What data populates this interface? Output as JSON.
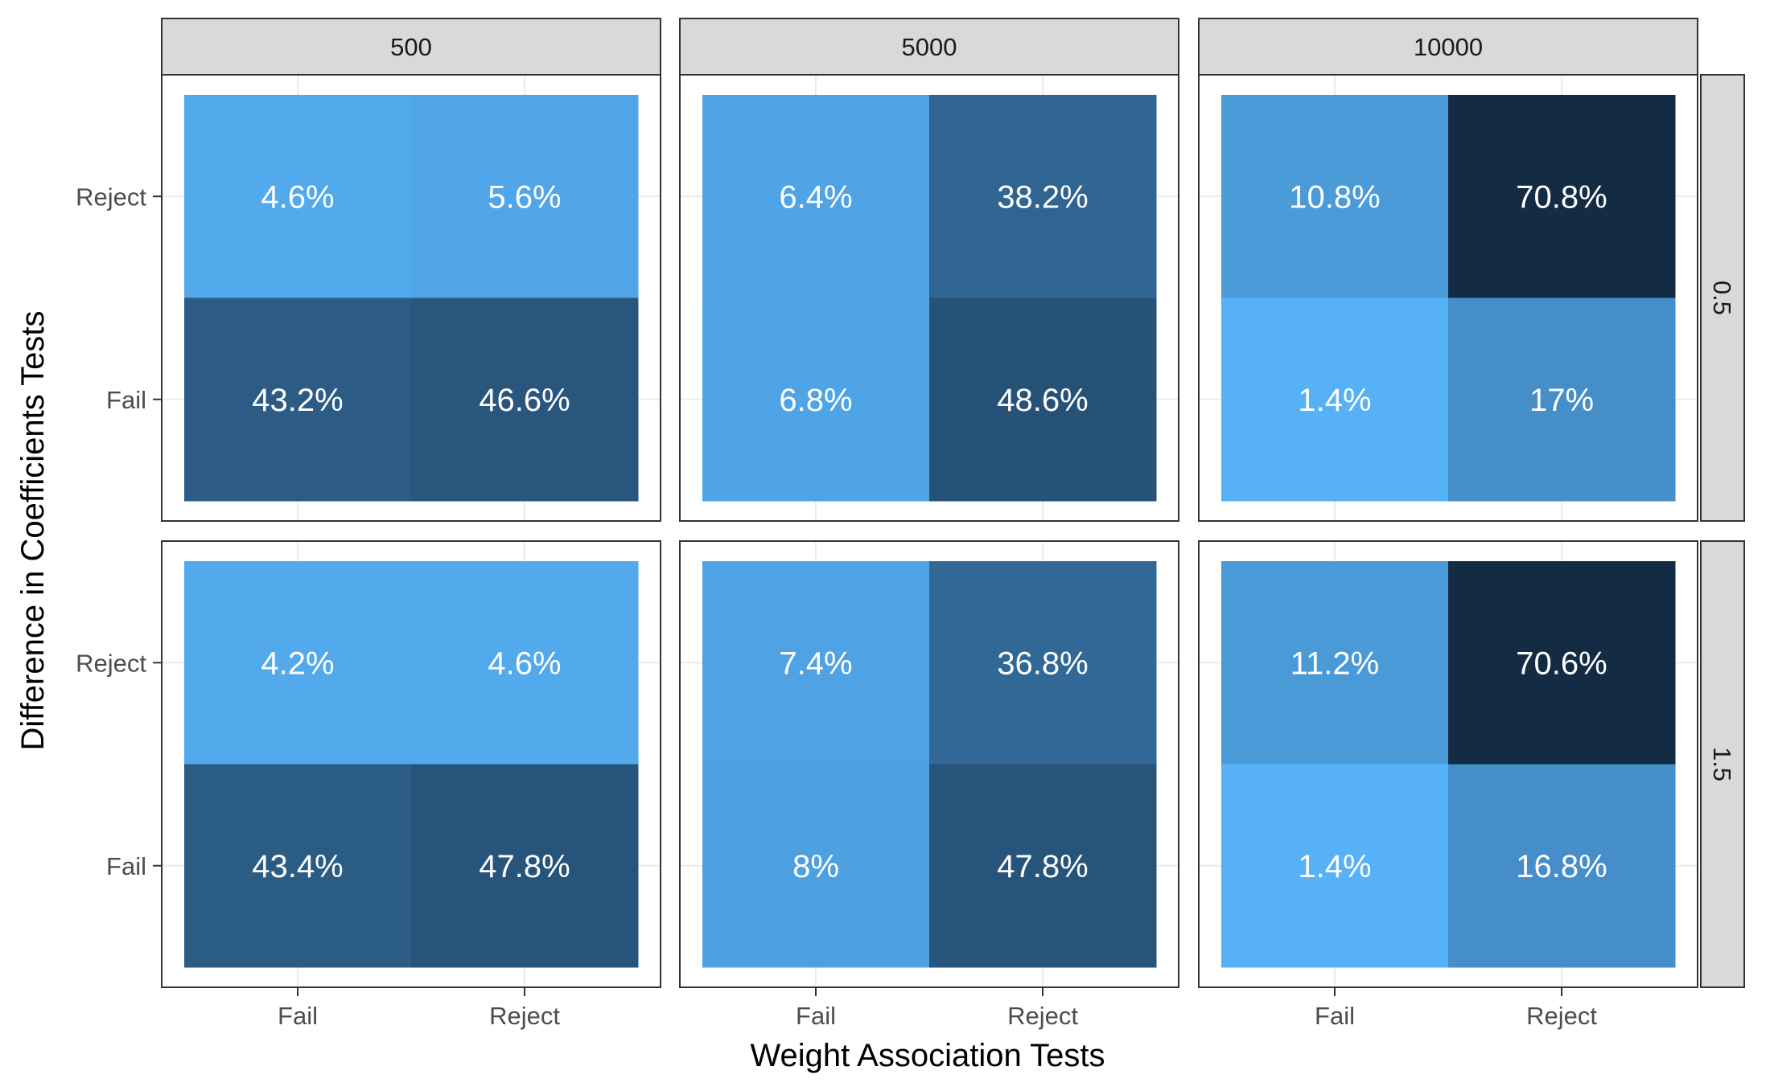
{
  "chart_data": {
    "type": "heatmap",
    "xlabel": "Weight Association Tests",
    "ylabel": "Difference in Coefficients Tests",
    "x_categories": [
      "Fail",
      "Reject"
    ],
    "y_categories": [
      "Fail",
      "Reject"
    ],
    "facet_columns": [
      "500",
      "5000",
      "10000"
    ],
    "facet_rows": [
      "0.5",
      "1.5"
    ],
    "value_unit": "%",
    "color_scale": {
      "low": "#56b1f7",
      "high": "#132b43"
    },
    "panels": [
      {
        "col": "500",
        "row": "0.5",
        "cells": [
          {
            "x": "Fail",
            "y": "Reject",
            "value": 4.6,
            "label": "4.6%"
          },
          {
            "x": "Reject",
            "y": "Reject",
            "value": 5.6,
            "label": "5.6%"
          },
          {
            "x": "Fail",
            "y": "Fail",
            "value": 43.2,
            "label": "43.2%"
          },
          {
            "x": "Reject",
            "y": "Fail",
            "value": 46.6,
            "label": "46.6%"
          }
        ]
      },
      {
        "col": "5000",
        "row": "0.5",
        "cells": [
          {
            "x": "Fail",
            "y": "Reject",
            "value": 6.4,
            "label": "6.4%"
          },
          {
            "x": "Reject",
            "y": "Reject",
            "value": 38.2,
            "label": "38.2%"
          },
          {
            "x": "Fail",
            "y": "Fail",
            "value": 6.8,
            "label": "6.8%"
          },
          {
            "x": "Reject",
            "y": "Fail",
            "value": 48.6,
            "label": "48.6%"
          }
        ]
      },
      {
        "col": "10000",
        "row": "0.5",
        "cells": [
          {
            "x": "Fail",
            "y": "Reject",
            "value": 10.8,
            "label": "10.8%"
          },
          {
            "x": "Reject",
            "y": "Reject",
            "value": 70.8,
            "label": "70.8%"
          },
          {
            "x": "Fail",
            "y": "Fail",
            "value": 1.4,
            "label": "1.4%"
          },
          {
            "x": "Reject",
            "y": "Fail",
            "value": 17,
            "label": "17%"
          }
        ]
      },
      {
        "col": "500",
        "row": "1.5",
        "cells": [
          {
            "x": "Fail",
            "y": "Reject",
            "value": 4.2,
            "label": "4.2%"
          },
          {
            "x": "Reject",
            "y": "Reject",
            "value": 4.6,
            "label": "4.6%"
          },
          {
            "x": "Fail",
            "y": "Fail",
            "value": 43.4,
            "label": "43.4%"
          },
          {
            "x": "Reject",
            "y": "Fail",
            "value": 47.8,
            "label": "47.8%"
          }
        ]
      },
      {
        "col": "5000",
        "row": "1.5",
        "cells": [
          {
            "x": "Fail",
            "y": "Reject",
            "value": 7.4,
            "label": "7.4%"
          },
          {
            "x": "Reject",
            "y": "Reject",
            "value": 36.8,
            "label": "36.8%"
          },
          {
            "x": "Fail",
            "y": "Fail",
            "value": 8,
            "label": "8%"
          },
          {
            "x": "Reject",
            "y": "Fail",
            "value": 47.8,
            "label": "47.8%"
          }
        ]
      },
      {
        "col": "10000",
        "row": "1.5",
        "cells": [
          {
            "x": "Fail",
            "y": "Reject",
            "value": 11.2,
            "label": "11.2%"
          },
          {
            "x": "Reject",
            "y": "Reject",
            "value": 70.6,
            "label": "70.6%"
          },
          {
            "x": "Fail",
            "y": "Fail",
            "value": 1.4,
            "label": "1.4%"
          },
          {
            "x": "Reject",
            "y": "Fail",
            "value": 16.8,
            "label": "16.8%"
          }
        ]
      }
    ]
  }
}
